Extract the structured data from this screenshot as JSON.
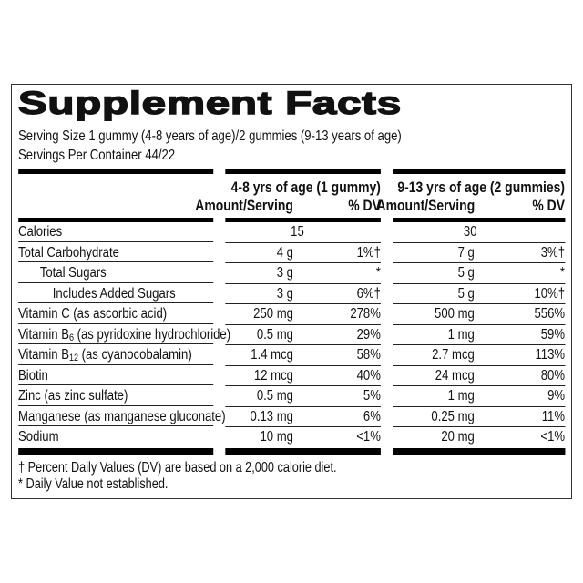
{
  "title": "Supplement Facts",
  "serving_size": "Serving Size 1 gummy (4-8 years of age)/2 gummies (9-13 years of age)",
  "servings_per_container": "Servings Per Container 44/22",
  "columns": {
    "group1": "4-8 yrs of age (1 gummy)",
    "group2": "9-13 yrs of age (2 gummies)",
    "amount_header": "Amount/Serving",
    "dv_header": "% DV"
  },
  "rows": [
    {
      "label": "Calories",
      "sub": "",
      "rest": "",
      "indent": 0,
      "a1": "15",
      "d1": "",
      "a2": "30",
      "d2": ""
    },
    {
      "label": "Total Carbohydrate",
      "sub": "",
      "rest": "",
      "indent": 0,
      "a1": "4 g",
      "d1": "1%†",
      "a2": "7 g",
      "d2": "3%†"
    },
    {
      "label": "Total Sugars",
      "sub": "",
      "rest": "",
      "indent": 1,
      "a1": "3 g",
      "d1": "*",
      "a2": "5 g",
      "d2": "*"
    },
    {
      "label": "Includes Added Sugars",
      "sub": "",
      "rest": "",
      "indent": 2,
      "a1": "3 g",
      "d1": "6%†",
      "a2": "5 g",
      "d2": "10%†"
    },
    {
      "label": "Vitamin C (as ascorbic acid)",
      "sub": "",
      "rest": "",
      "indent": 0,
      "a1": "250 mg",
      "d1": "278%",
      "a2": "500 mg",
      "d2": "556%"
    },
    {
      "label": "Vitamin B",
      "sub": "6",
      "rest": " (as pyridoxine hydrochloride)",
      "indent": 0,
      "a1": "0.5 mg",
      "d1": "29%",
      "a2": "1 mg",
      "d2": "59%"
    },
    {
      "label": "Vitamin B",
      "sub": "12",
      "rest": " (as cyanocobalamin)",
      "indent": 0,
      "a1": "1.4 mcg",
      "d1": "58%",
      "a2": "2.7 mcg",
      "d2": "113%"
    },
    {
      "label": "Biotin",
      "sub": "",
      "rest": "",
      "indent": 0,
      "a1": "12 mcg",
      "d1": "40%",
      "a2": "24 mcg",
      "d2": "80%"
    },
    {
      "label": "Zinc (as zinc sulfate)",
      "sub": "",
      "rest": "",
      "indent": 0,
      "a1": "0.5 mg",
      "d1": "5%",
      "a2": "1 mg",
      "d2": "9%"
    },
    {
      "label": "Manganese (as manganese gluconate)",
      "sub": "",
      "rest": "",
      "indent": 0,
      "a1": "0.13 mg",
      "d1": "6%",
      "a2": "0.25 mg",
      "d2": "11%"
    },
    {
      "label": "Sodium",
      "sub": "",
      "rest": "",
      "indent": 0,
      "a1": "10 mg",
      "d1": "<1%",
      "a2": "20 mg",
      "d2": "<1%"
    }
  ],
  "footnotes": {
    "dv": "† Percent Daily Values (DV) are based on a 2,000 calorie diet.",
    "not_established": "* Daily Value not established."
  }
}
